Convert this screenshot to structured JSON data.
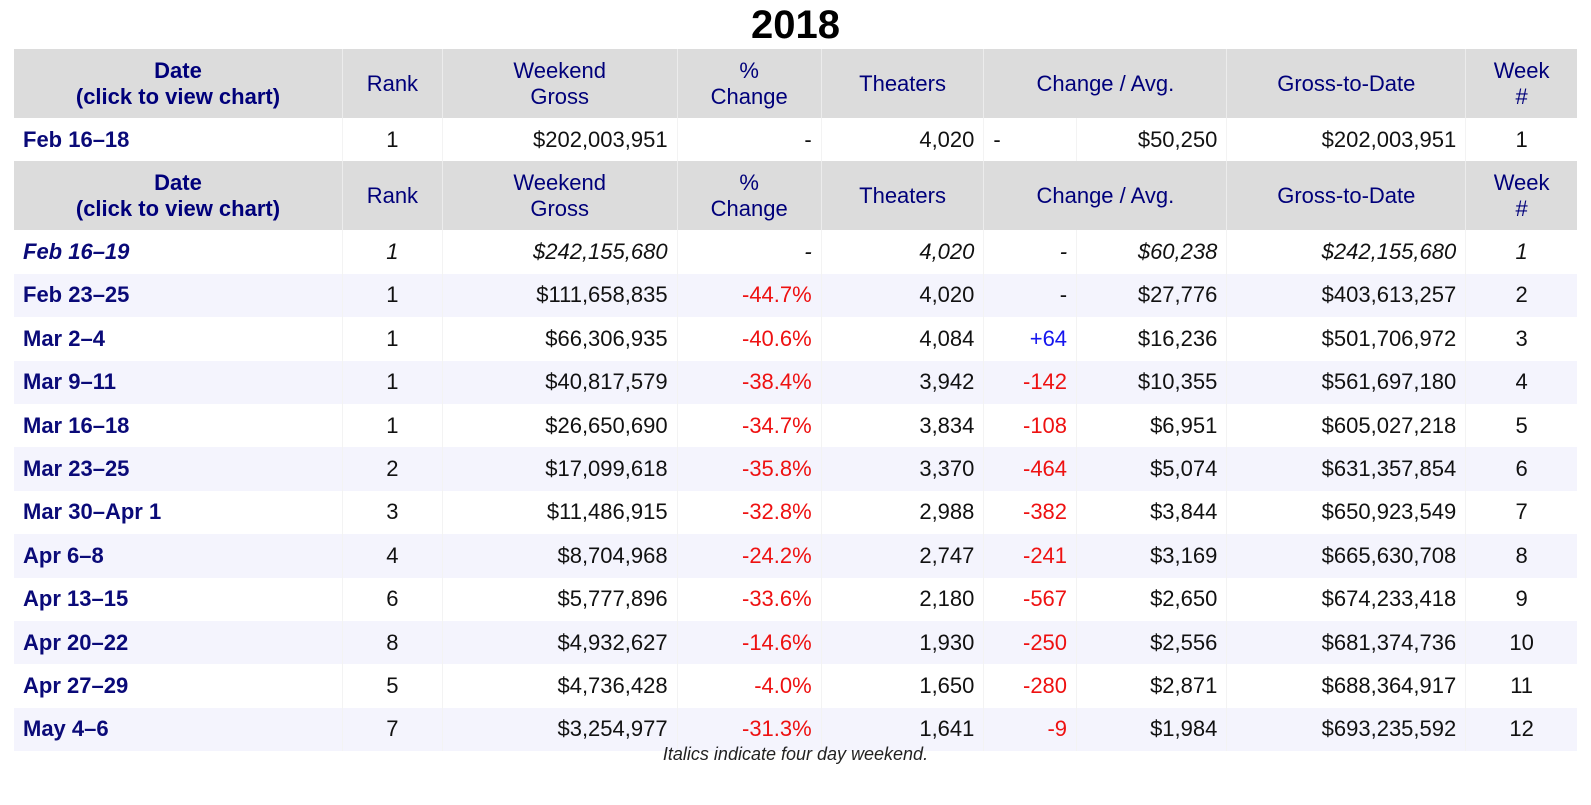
{
  "title": "2018",
  "headers": {
    "date_line1": "Date",
    "date_line2": "(click to view chart)",
    "rank": "Rank",
    "gross_line1": "Weekend",
    "gross_line2": "Gross",
    "pct_line1": "%",
    "pct_line2": "Change",
    "theaters": "Theaters",
    "change_avg": "Change / Avg.",
    "gross_to_date": "Gross-to-Date",
    "week_line1": "Week",
    "week_line2": "#"
  },
  "top_row": {
    "date": "Feb 16–18",
    "rank": "1",
    "gross": "$202,003,951",
    "pct": "-",
    "theaters": "4,020",
    "change": "-",
    "avg": "$50,250",
    "gtd": "$202,003,951",
    "week": "1"
  },
  "rows": [
    {
      "date": "Feb 16–19",
      "rank": "1",
      "gross": "$242,155,680",
      "pct": "-",
      "theaters": "4,020",
      "change": "-",
      "avg": "$60,238",
      "gtd": "$242,155,680",
      "week": "1",
      "italic": true
    },
    {
      "date": "Feb 23–25",
      "rank": "1",
      "gross": "$111,658,835",
      "pct": "-44.7%",
      "theaters": "4,020",
      "change": "-",
      "avg": "$27,776",
      "gtd": "$403,613,257",
      "week": "2"
    },
    {
      "date": "Mar 2–4",
      "rank": "1",
      "gross": "$66,306,935",
      "pct": "-40.6%",
      "theaters": "4,084",
      "change": "+64",
      "avg": "$16,236",
      "gtd": "$501,706,972",
      "week": "3"
    },
    {
      "date": "Mar 9–11",
      "rank": "1",
      "gross": "$40,817,579",
      "pct": "-38.4%",
      "theaters": "3,942",
      "change": "-142",
      "avg": "$10,355",
      "gtd": "$561,697,180",
      "week": "4"
    },
    {
      "date": "Mar 16–18",
      "rank": "1",
      "gross": "$26,650,690",
      "pct": "-34.7%",
      "theaters": "3,834",
      "change": "-108",
      "avg": "$6,951",
      "gtd": "$605,027,218",
      "week": "5"
    },
    {
      "date": "Mar 23–25",
      "rank": "2",
      "gross": "$17,099,618",
      "pct": "-35.8%",
      "theaters": "3,370",
      "change": "-464",
      "avg": "$5,074",
      "gtd": "$631,357,854",
      "week": "6"
    },
    {
      "date": "Mar 30–Apr 1",
      "rank": "3",
      "gross": "$11,486,915",
      "pct": "-32.8%",
      "theaters": "2,988",
      "change": "-382",
      "avg": "$3,844",
      "gtd": "$650,923,549",
      "week": "7"
    },
    {
      "date": "Apr 6–8",
      "rank": "4",
      "gross": "$8,704,968",
      "pct": "-24.2%",
      "theaters": "2,747",
      "change": "-241",
      "avg": "$3,169",
      "gtd": "$665,630,708",
      "week": "8"
    },
    {
      "date": "Apr 13–15",
      "rank": "6",
      "gross": "$5,777,896",
      "pct": "-33.6%",
      "theaters": "2,180",
      "change": "-567",
      "avg": "$2,650",
      "gtd": "$674,233,418",
      "week": "9"
    },
    {
      "date": "Apr 20–22",
      "rank": "8",
      "gross": "$4,932,627",
      "pct": "-14.6%",
      "theaters": "1,930",
      "change": "-250",
      "avg": "$2,556",
      "gtd": "$681,374,736",
      "week": "10"
    },
    {
      "date": "Apr 27–29",
      "rank": "5",
      "gross": "$4,736,428",
      "pct": "-4.0%",
      "theaters": "1,650",
      "change": "-280",
      "avg": "$2,871",
      "gtd": "$688,364,917",
      "week": "11"
    },
    {
      "date": "May 4–6",
      "rank": "7",
      "gross": "$3,254,977",
      "pct": "-31.3%",
      "theaters": "1,641",
      "change": "-9",
      "avg": "$1,984",
      "gtd": "$693,235,592",
      "week": "12"
    }
  ],
  "footnote": "Italics indicate four day weekend.",
  "colors": {
    "header_bg": "#dcdcdc",
    "header_text": "#00007a",
    "date_link": "#0a0a78",
    "negative": "#ee1111",
    "positive": "#1515ee",
    "stripe": "#f4f4fd"
  }
}
